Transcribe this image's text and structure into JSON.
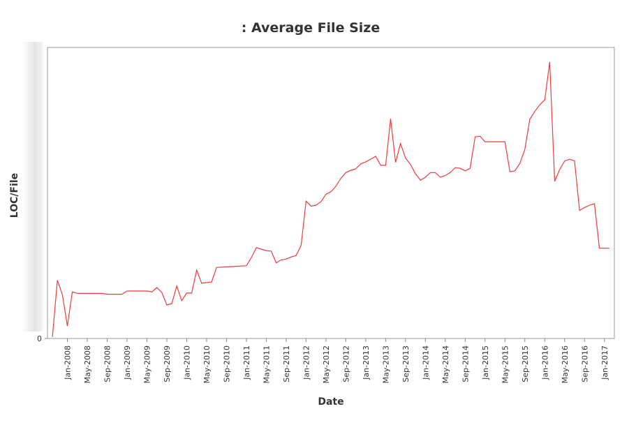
{
  "chart_data": {
    "type": "line",
    "title": ": Average File Size",
    "x_label": "Date",
    "y_label": "LOC/File",
    "xlim": [
      "2007-09",
      "2017-03"
    ],
    "xticks": [
      {
        "value": "2008-01",
        "label": "Jan-2008"
      },
      {
        "value": "2008-05",
        "label": "May-2008"
      },
      {
        "value": "2008-09",
        "label": "Sep-2008"
      },
      {
        "value": "2009-01",
        "label": "Jan-2009"
      },
      {
        "value": "2009-05",
        "label": "May-2009"
      },
      {
        "value": "2009-09",
        "label": "Sep-2009"
      },
      {
        "value": "2010-01",
        "label": "Jan-2010"
      },
      {
        "value": "2010-05",
        "label": "May-2010"
      },
      {
        "value": "2010-09",
        "label": "Sep-2010"
      },
      {
        "value": "2011-01",
        "label": "Jan-2011"
      },
      {
        "value": "2011-05",
        "label": "May-2011"
      },
      {
        "value": "2011-09",
        "label": "Sep-2011"
      },
      {
        "value": "2012-01",
        "label": "Jan-2012"
      },
      {
        "value": "2012-05",
        "label": "May-2012"
      },
      {
        "value": "2012-09",
        "label": "Sep-2012"
      },
      {
        "value": "2013-01",
        "label": "Jan-2013"
      },
      {
        "value": "2013-05",
        "label": "May-2013"
      },
      {
        "value": "2013-09",
        "label": "Sep-2013"
      },
      {
        "value": "2014-01",
        "label": "Jan-2014"
      },
      {
        "value": "2014-05",
        "label": "May-2014"
      },
      {
        "value": "2014-09",
        "label": "Sep-2014"
      },
      {
        "value": "2015-01",
        "label": "Jan-2015"
      },
      {
        "value": "2015-05",
        "label": "May-2015"
      },
      {
        "value": "2015-09",
        "label": "Sep-2015"
      },
      {
        "value": "2016-01",
        "label": "Jan-2016"
      },
      {
        "value": "2016-05",
        "label": "May-2016"
      },
      {
        "value": "2016-09",
        "label": "Sep-2016"
      },
      {
        "value": "2017-01",
        "label": "Jan-2017"
      }
    ],
    "ylim": [
      0,
      100
    ],
    "yticks": [
      0
    ],
    "grid": false,
    "x": [
      "2007-10",
      "2007-11",
      "2007-12",
      "2008-01",
      "2008-02",
      "2008-03",
      "2008-04",
      "2008-05",
      "2008-06",
      "2008-07",
      "2008-08",
      "2008-09",
      "2008-10",
      "2008-11",
      "2008-12",
      "2009-01",
      "2009-02",
      "2009-03",
      "2009-04",
      "2009-05",
      "2009-06",
      "2009-07",
      "2009-08",
      "2009-09",
      "2009-10",
      "2009-11",
      "2009-12",
      "2010-01",
      "2010-02",
      "2010-03",
      "2010-04",
      "2010-05",
      "2010-06",
      "2010-07",
      "2010-08",
      "2010-09",
      "2010-10",
      "2010-11",
      "2010-12",
      "2011-01",
      "2011-02",
      "2011-03",
      "2011-04",
      "2011-05",
      "2011-06",
      "2011-07",
      "2011-08",
      "2011-09",
      "2011-10",
      "2011-11",
      "2011-12",
      "2012-01",
      "2012-02",
      "2012-03",
      "2012-04",
      "2012-05",
      "2012-06",
      "2012-07",
      "2012-08",
      "2012-09",
      "2012-10",
      "2012-11",
      "2012-12",
      "2013-01",
      "2013-02",
      "2013-03",
      "2013-04",
      "2013-05",
      "2013-06",
      "2013-07",
      "2013-08",
      "2013-09",
      "2013-10",
      "2013-11",
      "2013-12",
      "2014-01",
      "2014-02",
      "2014-03",
      "2014-04",
      "2014-05",
      "2014-06",
      "2014-07",
      "2014-08",
      "2014-09",
      "2014-10",
      "2014-11",
      "2014-12",
      "2015-01",
      "2015-02",
      "2015-03",
      "2015-04",
      "2015-05",
      "2015-06",
      "2015-07",
      "2015-08",
      "2015-09",
      "2015-10",
      "2015-11",
      "2015-12",
      "2016-01",
      "2016-02",
      "2016-03",
      "2016-04",
      "2016-05",
      "2016-06",
      "2016-07",
      "2016-08",
      "2016-09",
      "2016-10",
      "2016-11",
      "2016-12",
      "2017-01",
      "2017-02"
    ],
    "series": [
      {
        "color": "#ee3b3b",
        "values": [
          0.5,
          20,
          15,
          4.3,
          16,
          15.5,
          15.5,
          15.5,
          15.5,
          15.5,
          15.5,
          15.2,
          15.2,
          15.2,
          15.2,
          16.3,
          16.3,
          16.3,
          16.3,
          16.3,
          16,
          17.5,
          15.8,
          11.5,
          12,
          18,
          13,
          15.6,
          15.6,
          23.5,
          19,
          19.2,
          19.4,
          24.4,
          24.5,
          24.6,
          24.7,
          24.8,
          24.9,
          25,
          27.8,
          31.2,
          30.7,
          30.2,
          30,
          26,
          27,
          27.3,
          28,
          28.5,
          32,
          47.2,
          45.5,
          45.8,
          47,
          49.6,
          50.4,
          52.3,
          55,
          57,
          57.8,
          58.3,
          60,
          60.7,
          61.6,
          62.6,
          59.5,
          59.5,
          75.5,
          60.5,
          67,
          62,
          59.8,
          56.6,
          54.4,
          55.4,
          57,
          57,
          55.4,
          56,
          57,
          58.7,
          58.5,
          57.6,
          58.5,
          69.3,
          69.5,
          67.6,
          67.6,
          67.6,
          67.6,
          67.6,
          57.3,
          57.6,
          60.2,
          65,
          75.3,
          78,
          80.3,
          82,
          95,
          54,
          58,
          61,
          61.6,
          61,
          44,
          45,
          45.8,
          46.3,
          31,
          31,
          31
        ]
      }
    ]
  }
}
